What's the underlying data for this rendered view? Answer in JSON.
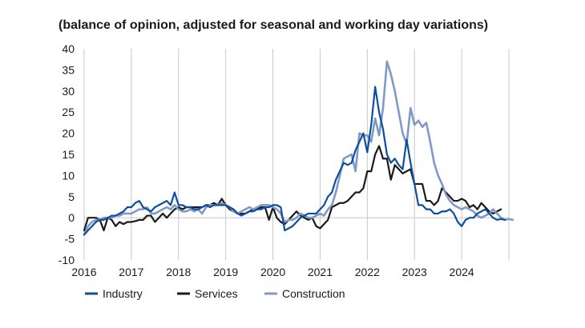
{
  "chart_data": {
    "type": "line",
    "title": "(balance of opinion, adjusted for seasonal and working day variations)",
    "xlabel": "",
    "ylabel": "",
    "ylim": [
      -10,
      40
    ],
    "yticks": [
      -10,
      -5,
      0,
      5,
      10,
      15,
      20,
      25,
      30,
      35,
      40
    ],
    "xlim": [
      2016,
      2025
    ],
    "xticks": [
      2016,
      2017,
      2018,
      2019,
      2020,
      2021,
      2022,
      2023,
      2024
    ],
    "x_start": 2016,
    "x_step": 0.0833333,
    "grid": "vertical",
    "legend_position": "bottom",
    "series": [
      {
        "name": "Industry",
        "color": "#0d4f9e",
        "width": 2.2,
        "values": [
          -4,
          -3,
          -2,
          -1,
          -0.5,
          -0.5,
          0,
          0.5,
          0.5,
          1,
          1.5,
          2.5,
          2.5,
          3.5,
          4,
          2.5,
          2,
          1.5,
          2.5,
          3,
          3.5,
          4,
          3,
          6,
          3,
          3,
          2.5,
          2.5,
          2,
          2,
          2.5,
          3,
          2.5,
          3,
          3,
          3,
          3,
          2.5,
          2,
          1,
          0.5,
          1,
          1.5,
          1.5,
          2,
          2,
          2.5,
          2.5,
          3,
          3,
          2.5,
          -3,
          -2.5,
          -2,
          -1,
          0,
          0.5,
          1,
          1,
          1,
          2,
          3,
          5,
          6,
          9,
          11,
          13,
          12.5,
          13,
          16,
          18,
          20,
          15.5,
          22,
          31,
          25,
          21,
          15,
          13,
          14,
          12.5,
          11.5,
          18.5,
          13,
          8,
          3,
          3,
          2,
          2,
          1,
          1,
          1.5,
          1.5,
          2,
          1,
          -1,
          -2,
          -0.5,
          0,
          0,
          1,
          1.5,
          2,
          1,
          0,
          -0.5,
          -0.3,
          -0.5
        ]
      },
      {
        "name": "Services",
        "color": "#1a1a1a",
        "width": 2.2,
        "values": [
          -3,
          0,
          0,
          0,
          -0.5,
          -3,
          0,
          -0.5,
          -2,
          -1,
          -1.5,
          -1,
          -1,
          -0.8,
          -0.5,
          -0.5,
          0.5,
          0.5,
          -1,
          0,
          1,
          0,
          1,
          2,
          2.5,
          2,
          2.5,
          2.5,
          2.5,
          2.5,
          2.5,
          3,
          3,
          3.5,
          3,
          4.5,
          3,
          2,
          1.5,
          1,
          1,
          1,
          1.5,
          2,
          2,
          2.5,
          2.5,
          -0.5,
          2.5,
          0,
          -1,
          -1.5,
          -0.5,
          0.5,
          1.5,
          0.5,
          0,
          -0.5,
          0,
          -2,
          -2.5,
          -1.5,
          -0.5,
          2.5,
          3,
          3.5,
          3.5,
          4,
          5,
          6,
          6,
          7,
          11,
          11,
          15,
          17,
          14,
          14,
          9,
          12.5,
          11.5,
          10.5,
          11,
          11.5,
          8,
          8,
          8,
          4,
          4,
          3,
          4,
          7,
          6,
          5,
          4,
          4,
          4.5,
          4,
          2.5,
          3,
          2,
          3.5,
          2.5,
          1.5,
          1,
          1.5,
          2
        ]
      },
      {
        "name": "Construction",
        "color": "#7f9ac7",
        "width": 2.6,
        "values": [
          -4,
          -2,
          -1,
          -0.5,
          -0.5,
          0,
          0,
          0,
          0.5,
          0.5,
          1,
          1,
          1,
          1.5,
          2,
          2,
          2.5,
          1,
          1,
          1.5,
          2,
          2.5,
          2,
          3,
          2,
          1.5,
          1.5,
          2,
          1.5,
          2,
          1,
          2.5,
          3,
          3,
          3,
          3.5,
          3,
          2.5,
          1.5,
          1,
          1.5,
          2,
          2.5,
          2,
          2.5,
          3,
          3,
          3,
          2.5,
          2,
          1,
          -1,
          -0.5,
          -0.5,
          0,
          1,
          0.5,
          0,
          0,
          0.5,
          1,
          0.5,
          2,
          3,
          6,
          10,
          14,
          14.5,
          15,
          11,
          20,
          19.5,
          19.5,
          18,
          23.5,
          19.5,
          26,
          37,
          34,
          30,
          25,
          20,
          17.5,
          26,
          22,
          23,
          21.5,
          22.5,
          18,
          13,
          10,
          8,
          5.5,
          4,
          3,
          2.5,
          2,
          2.5,
          2,
          1.5,
          0.5,
          0,
          0.5,
          1,
          2,
          1,
          0,
          -0.5,
          -0.3,
          -0.5
        ]
      }
    ]
  }
}
